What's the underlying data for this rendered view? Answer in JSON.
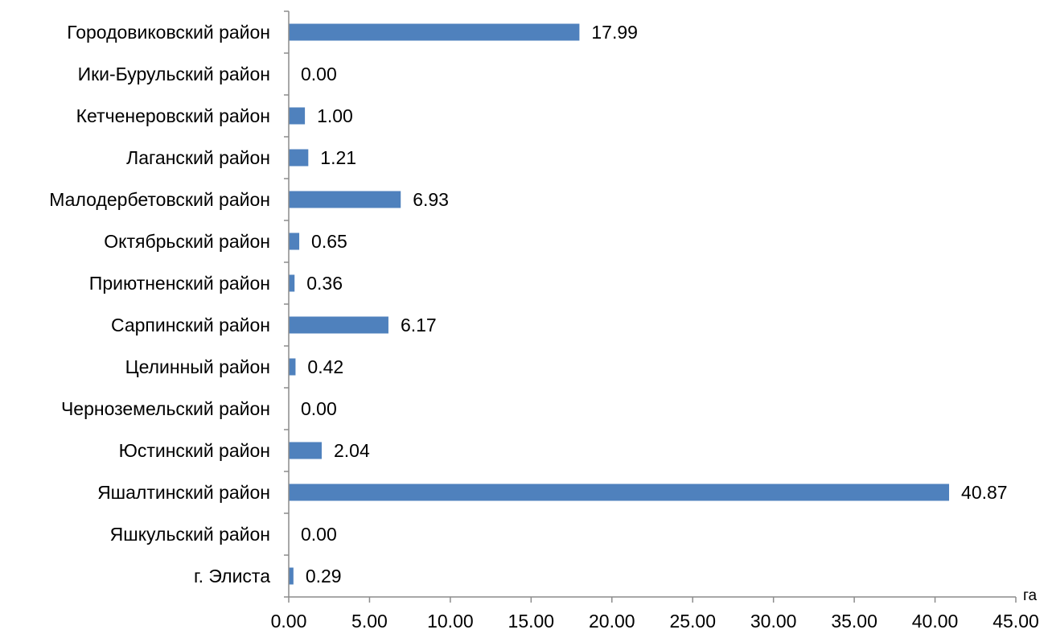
{
  "chart_data": {
    "type": "bar",
    "orientation": "horizontal",
    "categories": [
      "Городовиковский район",
      "Ики-Бурульский район",
      "Кетченеровский район",
      "Лаганский район",
      "Малодербетовский район",
      "Октябрьский район",
      "Приютненский район",
      "Сарпинский район",
      "Целинный район",
      "Черноземельский район",
      "Юстинский район",
      "Яшалтинский район",
      "Яшкульский район",
      "г. Элиста"
    ],
    "values": [
      17.99,
      0.0,
      1.0,
      1.21,
      6.93,
      0.65,
      0.36,
      6.17,
      0.42,
      0.0,
      2.04,
      40.87,
      0.0,
      0.29
    ],
    "value_labels": [
      "17.99",
      "0.00",
      "1.00",
      "1.21",
      "6.93",
      "0.65",
      "0.36",
      "6.17",
      "0.42",
      "0.00",
      "2.04",
      "40.87",
      "0.00",
      "0.29"
    ],
    "xlim": [
      0,
      45
    ],
    "x_ticks": [
      "0.00",
      "5.00",
      "10.00",
      "15.00",
      "20.00",
      "25.00",
      "30.00",
      "35.00",
      "40.00",
      "45.00"
    ],
    "unit_label": "га",
    "bar_color": "#4f81bd",
    "axis_color": "#8c8c8c",
    "grid": false,
    "legend": "none"
  }
}
